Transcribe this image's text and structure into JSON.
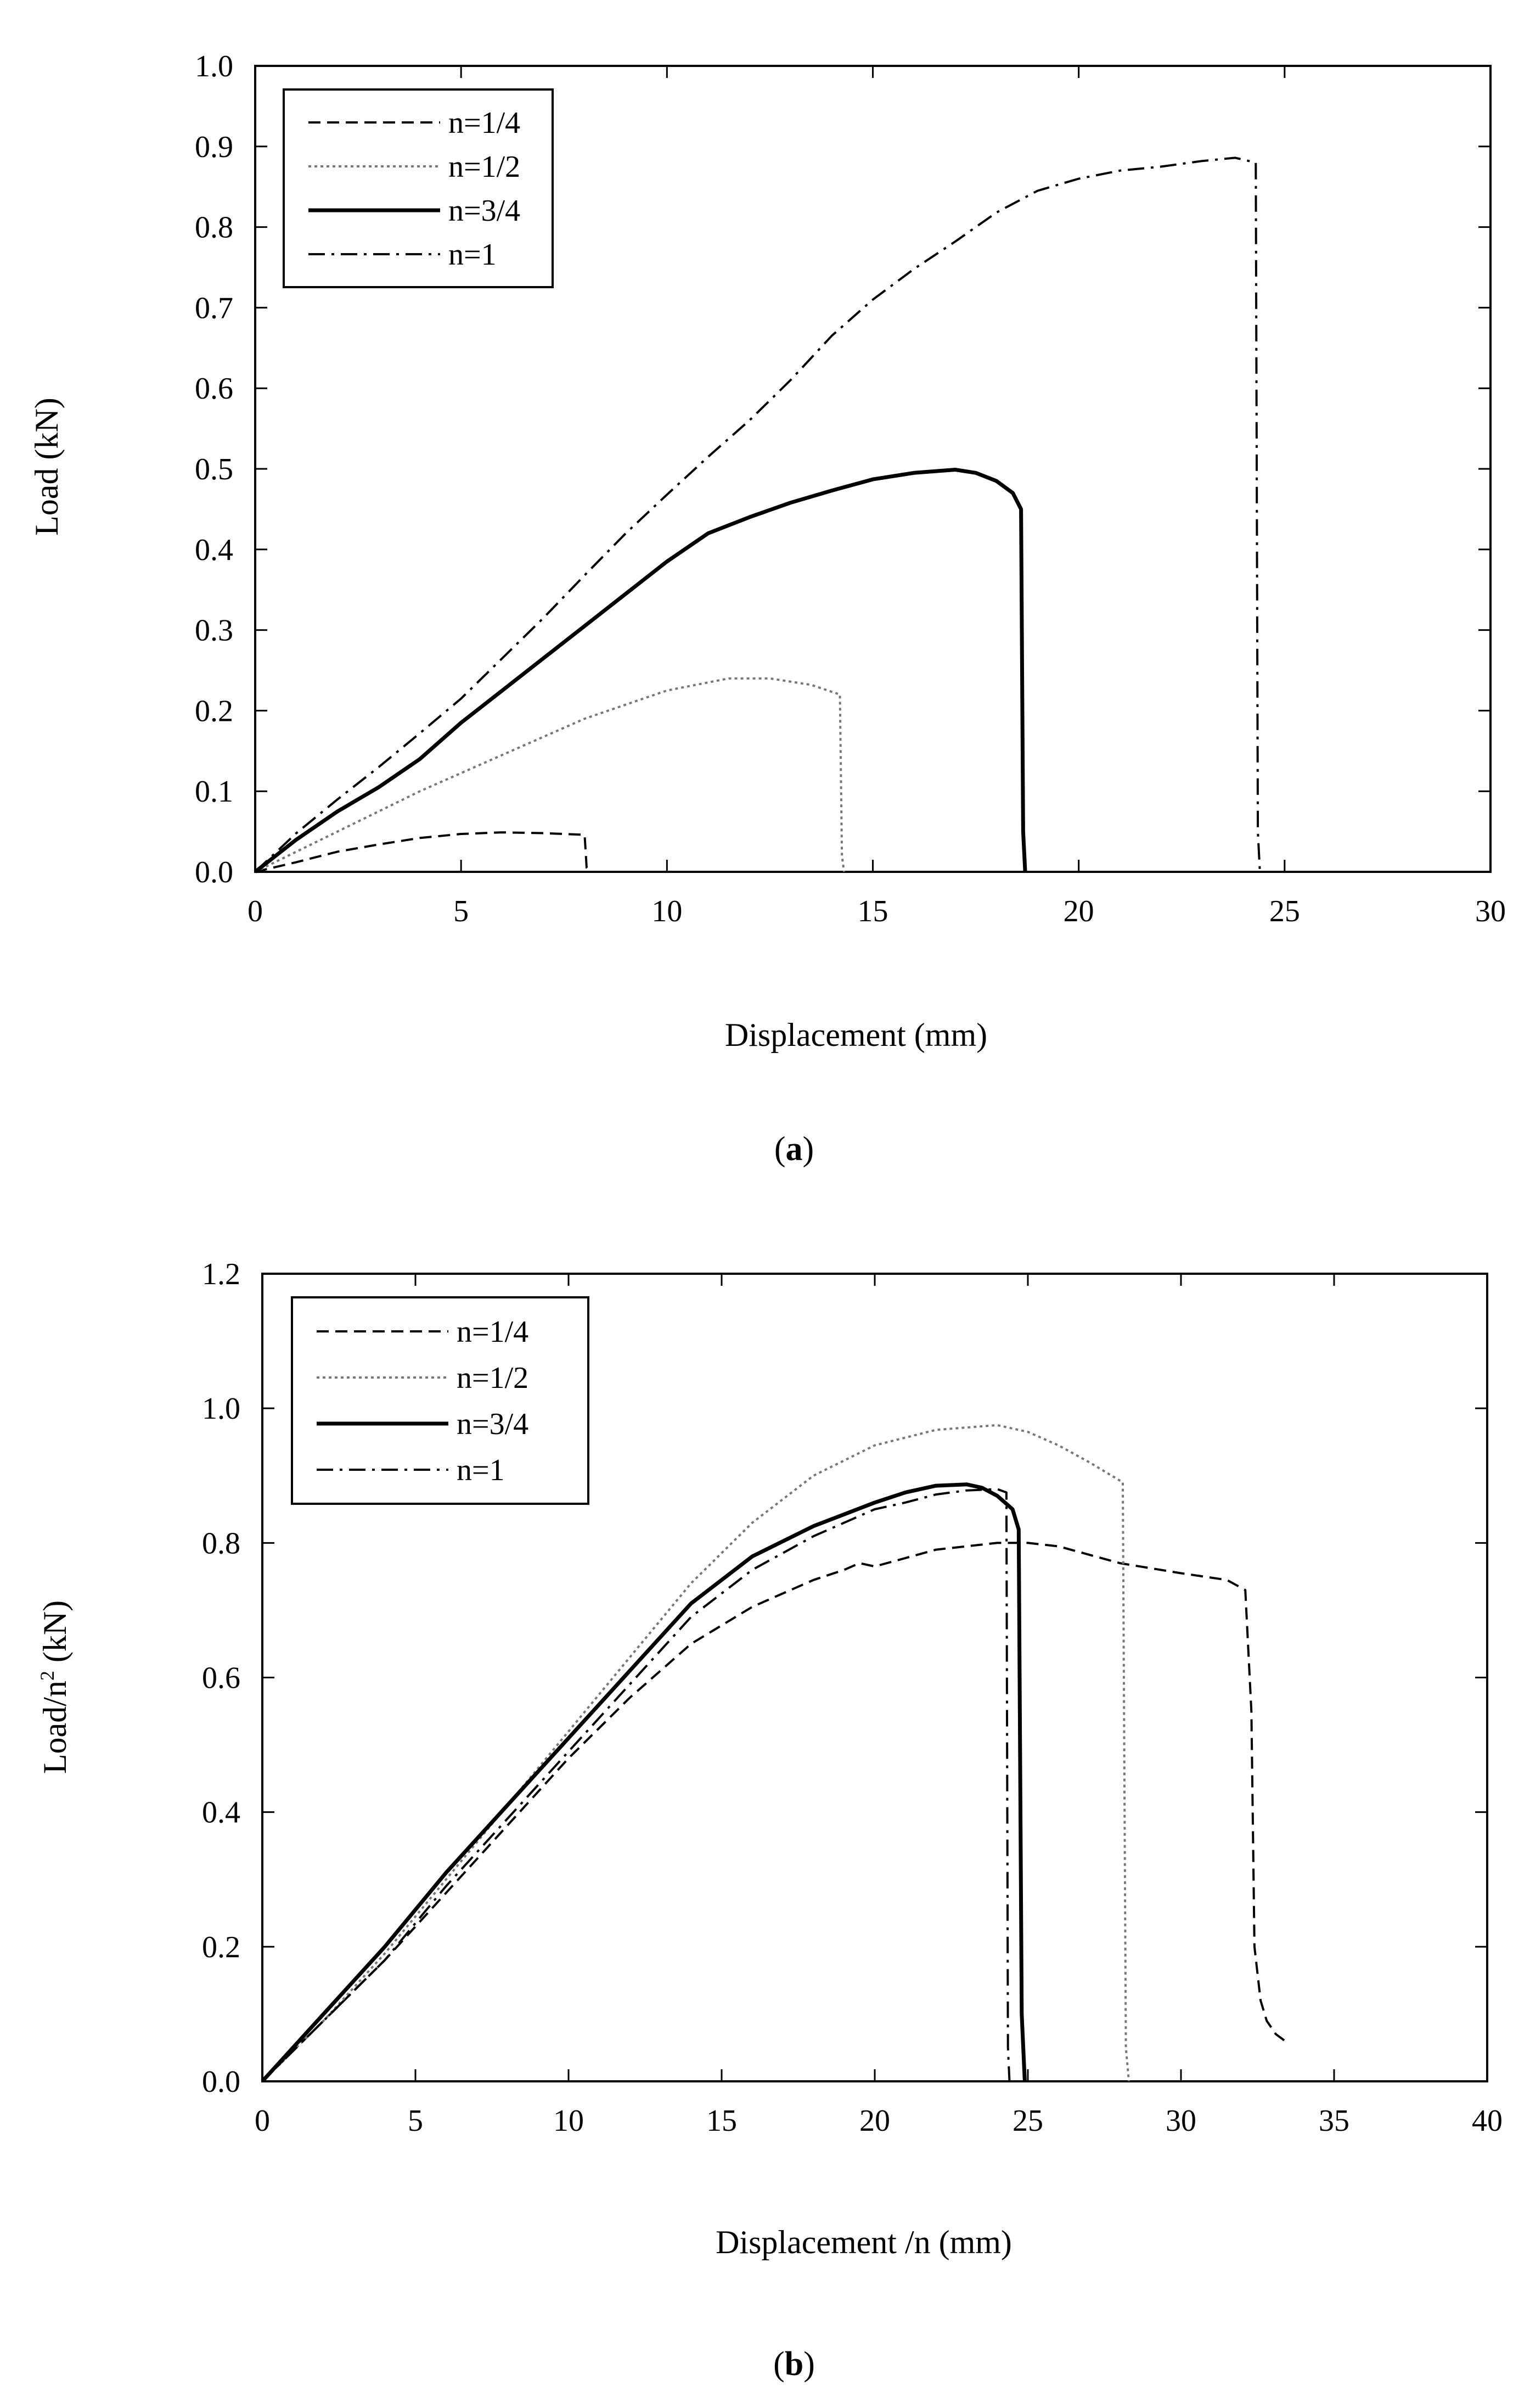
{
  "chart_data": [
    {
      "type": "line",
      "panel_label": "a",
      "xlabel": "Displacement (mm)",
      "ylabel": "Load (kN)",
      "xlim": [
        0,
        30
      ],
      "ylim": [
        0,
        1.0
      ],
      "xticks": [
        0,
        5,
        10,
        15,
        20,
        25,
        30
      ],
      "yticks": [
        0.0,
        0.1,
        0.2,
        0.3,
        0.4,
        0.5,
        0.6,
        0.7,
        0.8,
        0.9,
        1.0
      ],
      "ytick_decimals": 1,
      "legend_position": "top-left",
      "series": [
        {
          "name": "n=1/4",
          "style": "dashed",
          "x": [
            0,
            1,
            2,
            3,
            4,
            5,
            6,
            7,
            8,
            8.05,
            8.2
          ],
          "y": [
            0,
            0.012,
            0.025,
            0.034,
            0.042,
            0.047,
            0.049,
            0.048,
            0.046,
            0.005,
            0.0
          ]
        },
        {
          "name": "n=1/2",
          "style": "dotted",
          "x": [
            0,
            2,
            4,
            6,
            8,
            10,
            11.5,
            12.5,
            13.5,
            14.2,
            14.25,
            14.3
          ],
          "y": [
            0,
            0.05,
            0.1,
            0.145,
            0.19,
            0.225,
            0.24,
            0.24,
            0.232,
            0.22,
            0.02,
            0.0
          ]
        },
        {
          "name": "n=3/4",
          "style": "solid",
          "x": [
            0,
            1,
            2,
            3,
            4,
            5,
            6,
            7,
            8,
            9,
            10,
            11,
            12,
            13,
            14,
            15,
            16,
            17,
            17.5,
            18,
            18.4,
            18.6,
            18.65,
            18.7
          ],
          "y": [
            0,
            0.04,
            0.075,
            0.105,
            0.14,
            0.185,
            0.225,
            0.265,
            0.305,
            0.345,
            0.385,
            0.42,
            0.44,
            0.458,
            0.473,
            0.487,
            0.495,
            0.499,
            0.495,
            0.485,
            0.47,
            0.45,
            0.05,
            0.0
          ]
        },
        {
          "name": "n=1",
          "style": "dashdot",
          "x": [
            0,
            1,
            2,
            3,
            4,
            5,
            6,
            7,
            8,
            9,
            10,
            11,
            12,
            13,
            14,
            15,
            16,
            17,
            18,
            19,
            20,
            21,
            22,
            23,
            23.8,
            24.3,
            24.35,
            24.4
          ],
          "y": [
            0,
            0.048,
            0.09,
            0.13,
            0.172,
            0.215,
            0.265,
            0.315,
            0.368,
            0.42,
            0.468,
            0.515,
            0.56,
            0.61,
            0.665,
            0.71,
            0.748,
            0.782,
            0.818,
            0.845,
            0.86,
            0.87,
            0.875,
            0.882,
            0.886,
            0.88,
            0.05,
            0.0
          ]
        }
      ]
    },
    {
      "type": "line",
      "panel_label": "b",
      "xlabel": "Displacement /n (mm)",
      "ylabel_main": "Load/n",
      "ylabel_sup": "2",
      "ylabel_unit": " (kN)",
      "xlim": [
        0,
        40
      ],
      "ylim": [
        0,
        1.2
      ],
      "xticks": [
        0,
        5,
        10,
        15,
        20,
        25,
        30,
        35,
        40
      ],
      "yticks": [
        0.0,
        0.2,
        0.4,
        0.6,
        0.8,
        1.0,
        1.2
      ],
      "ytick_decimals": 1,
      "legend_position": "top-left",
      "series": [
        {
          "name": "n=1/4",
          "style": "dashed",
          "x": [
            0,
            2,
            4,
            6,
            8,
            10,
            12,
            14,
            16,
            18,
            19,
            19.5,
            20,
            22,
            24,
            25,
            26,
            28,
            30,
            31.5,
            32.1,
            32.3,
            32.4,
            32.6,
            32.8,
            33.1,
            33.4
          ],
          "y": [
            0,
            0.09,
            0.18,
            0.28,
            0.38,
            0.48,
            0.57,
            0.65,
            0.705,
            0.745,
            0.76,
            0.77,
            0.765,
            0.79,
            0.8,
            0.8,
            0.795,
            0.77,
            0.755,
            0.745,
            0.73,
            0.55,
            0.2,
            0.12,
            0.09,
            0.07,
            0.06
          ]
        },
        {
          "name": "n=1/2",
          "style": "dotted",
          "x": [
            0,
            2,
            4,
            6,
            8,
            10,
            12,
            14,
            16,
            18,
            20,
            22,
            24,
            25,
            26,
            27,
            28.1,
            28.2,
            28.3
          ],
          "y": [
            0,
            0.09,
            0.19,
            0.3,
            0.41,
            0.52,
            0.63,
            0.74,
            0.83,
            0.9,
            0.945,
            0.968,
            0.975,
            0.965,
            0.945,
            0.92,
            0.89,
            0.05,
            0.0
          ]
        },
        {
          "name": "n=3/4",
          "style": "solid",
          "x": [
            0,
            2,
            4,
            6,
            8,
            10,
            12,
            14,
            16,
            18,
            20,
            21,
            22,
            23,
            23.5,
            24,
            24.5,
            24.7,
            24.8,
            24.9
          ],
          "y": [
            0,
            0.1,
            0.2,
            0.31,
            0.41,
            0.51,
            0.61,
            0.71,
            0.78,
            0.825,
            0.86,
            0.875,
            0.885,
            0.887,
            0.882,
            0.87,
            0.85,
            0.82,
            0.1,
            0.0
          ]
        },
        {
          "name": "n=1",
          "style": "dashdot",
          "x": [
            0,
            2,
            4,
            6,
            8,
            10,
            12,
            14,
            16,
            18,
            20,
            21,
            22,
            23,
            24,
            24.3,
            24.35,
            24.4
          ],
          "y": [
            0,
            0.09,
            0.18,
            0.29,
            0.39,
            0.49,
            0.59,
            0.69,
            0.76,
            0.81,
            0.85,
            0.86,
            0.872,
            0.878,
            0.88,
            0.875,
            0.05,
            0.0
          ]
        }
      ]
    }
  ]
}
